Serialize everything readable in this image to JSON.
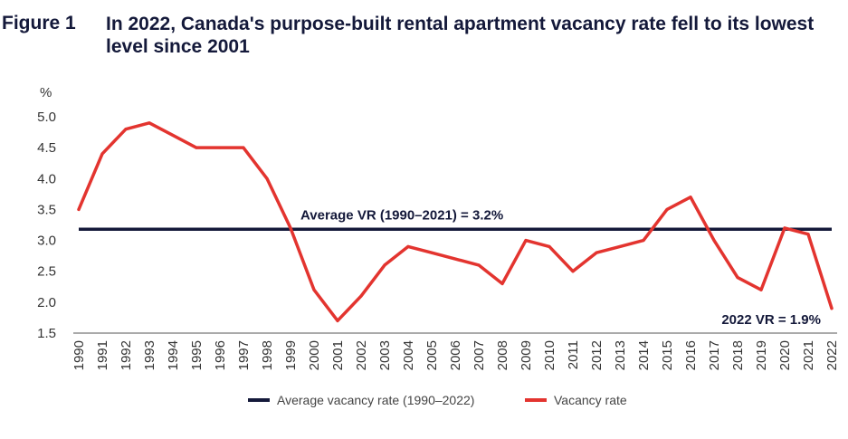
{
  "figure": {
    "label": "Figure 1",
    "title": "In 2022, Canada's purpose-built rental apartment vacancy rate fell to its lowest level since 2001"
  },
  "chart_data": {
    "type": "line",
    "title": "In 2022, Canada's purpose-built rental apartment vacancy rate fell to its lowest level since 2001",
    "ylabel": "%",
    "xlabel": "",
    "ylim": [
      1.5,
      5.0
    ],
    "yticks": [
      "5.0",
      "4.5",
      "4.0",
      "3.5",
      "3.0",
      "2.5",
      "2.0",
      "1.5"
    ],
    "x": [
      "1990",
      "1991",
      "1992",
      "1993",
      "1994",
      "1995",
      "1996",
      "1997",
      "1998",
      "1999",
      "2000",
      "2001",
      "2002",
      "2003",
      "2004",
      "2005",
      "2006",
      "2007",
      "2008",
      "2009",
      "2010",
      "2011",
      "2012",
      "2013",
      "2014",
      "2015",
      "2016",
      "2017",
      "2018",
      "2019",
      "2020",
      "2021",
      "2022"
    ],
    "series": [
      {
        "name": "Vacancy rate",
        "color": "#e3342f",
        "values": [
          3.5,
          4.4,
          4.8,
          4.9,
          4.7,
          4.5,
          4.5,
          4.5,
          4.0,
          3.2,
          2.2,
          1.7,
          2.1,
          2.6,
          2.9,
          2.8,
          2.7,
          2.6,
          2.3,
          3.0,
          2.9,
          2.5,
          2.8,
          2.9,
          3.0,
          3.5,
          3.7,
          3.0,
          2.4,
          2.2,
          3.2,
          3.1,
          1.9
        ]
      },
      {
        "name": "Average vacancy rate (1990–2022)",
        "color": "#14193a",
        "constant": 3.18
      }
    ],
    "annotations": [
      {
        "text": "Average VR (1990–2021) = 3.2%"
      },
      {
        "text": "2022 VR = 1.9%"
      }
    ],
    "legend": {
      "position": "bottom-center",
      "items": [
        "Average vacancy rate (1990–2022)",
        "Vacancy rate"
      ]
    }
  }
}
